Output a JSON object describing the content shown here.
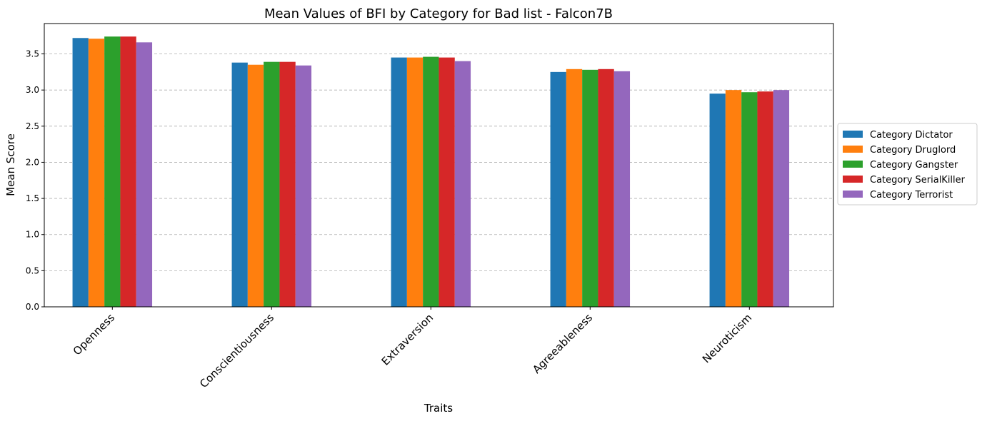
{
  "chart_data": {
    "type": "bar",
    "title": "Mean Values of BFI by Category for Bad list - Falcon7B",
    "xlabel": "Traits",
    "ylabel": "Mean Score",
    "categories": [
      "Openness",
      "Conscientiousness",
      "Extraversion",
      "Agreeableness",
      "Neuroticism"
    ],
    "series": [
      {
        "name": "Category Dictator",
        "color": "#1f77b4",
        "values": [
          3.72,
          3.38,
          3.45,
          3.25,
          2.95
        ]
      },
      {
        "name": "Category Druglord",
        "color": "#ff7f0e",
        "values": [
          3.71,
          3.35,
          3.45,
          3.29,
          3.0
        ]
      },
      {
        "name": "Category Gangster",
        "color": "#2ca02c",
        "values": [
          3.74,
          3.39,
          3.46,
          3.28,
          2.97
        ]
      },
      {
        "name": "Category SerialKiller",
        "color": "#d62728",
        "values": [
          3.74,
          3.39,
          3.45,
          3.29,
          2.98
        ]
      },
      {
        "name": "Category Terrorist",
        "color": "#9467bd",
        "values": [
          3.66,
          3.34,
          3.4,
          3.26,
          3.0
        ]
      }
    ],
    "ylim": [
      0,
      3.92
    ],
    "yticks": [
      "0.0",
      "0.5",
      "1.0",
      "1.5",
      "2.0",
      "2.5",
      "3.0",
      "3.5"
    ],
    "grid": "y-dashed",
    "legend_position": "center-right-outside"
  }
}
